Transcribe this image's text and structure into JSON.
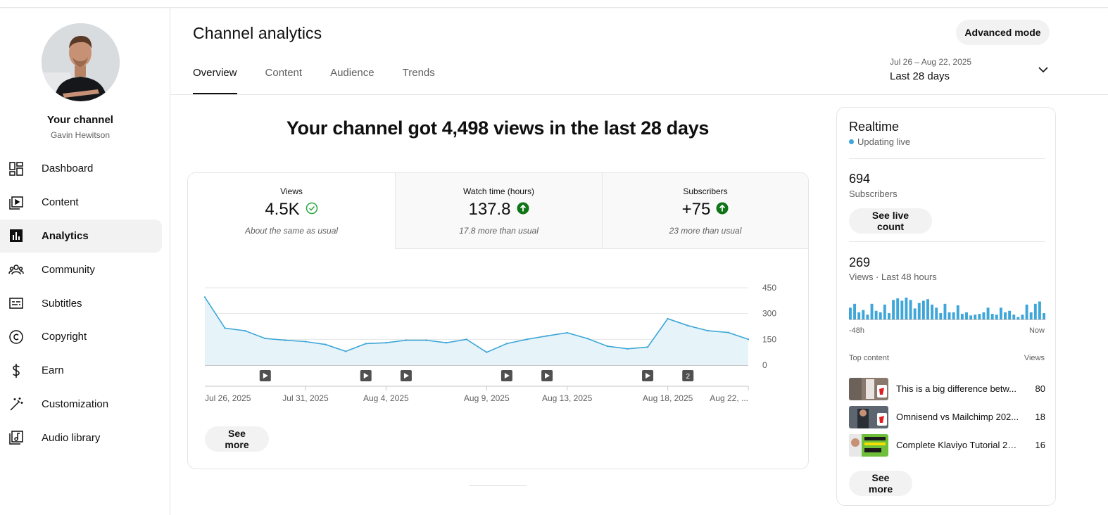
{
  "sidebar": {
    "channel_name": "Your channel",
    "channel_owner": "Gavin Hewitson",
    "items": [
      {
        "label": "Dashboard",
        "icon": "dashboard-icon",
        "active": false
      },
      {
        "label": "Content",
        "icon": "content-icon",
        "active": false
      },
      {
        "label": "Analytics",
        "icon": "analytics-icon",
        "active": true
      },
      {
        "label": "Community",
        "icon": "community-icon",
        "active": false
      },
      {
        "label": "Subtitles",
        "icon": "subtitles-icon",
        "active": false
      },
      {
        "label": "Copyright",
        "icon": "copyright-icon",
        "active": false
      },
      {
        "label": "Earn",
        "icon": "earn-icon",
        "active": false
      },
      {
        "label": "Customization",
        "icon": "customization-icon",
        "active": false
      },
      {
        "label": "Audio library",
        "icon": "audio-library-icon",
        "active": false
      }
    ]
  },
  "header": {
    "title": "Channel analytics",
    "advanced_mode": "Advanced mode",
    "tabs": [
      {
        "label": "Overview",
        "active": true
      },
      {
        "label": "Content",
        "active": false
      },
      {
        "label": "Audience",
        "active": false
      },
      {
        "label": "Trends",
        "active": false
      }
    ],
    "date_range": {
      "dates": "Jul 26 – Aug 22, 2025",
      "label": "Last 28 days"
    }
  },
  "main": {
    "headline": "Your channel got 4,498 views in the last 28 days",
    "metrics": [
      {
        "label": "Views",
        "value": "4.5K",
        "note": "About the same as usual",
        "status": "check"
      },
      {
        "label": "Watch time (hours)",
        "value": "137.8",
        "note": "17.8 more than usual",
        "status": "up"
      },
      {
        "label": "Subscribers",
        "value": "+75",
        "note": "23 more than usual",
        "status": "up"
      }
    ],
    "see_more": "See more"
  },
  "chart_data": {
    "type": "area",
    "series": [
      {
        "values": [
          395,
          215,
          200,
          155,
          145,
          137,
          120,
          80,
          125,
          130,
          145,
          145,
          130,
          150,
          75,
          125,
          150,
          170,
          188,
          155,
          110,
          95,
          105,
          270,
          230,
          200,
          190,
          150
        ]
      }
    ],
    "ylim": [
      0,
      450
    ],
    "yticks": [
      "450",
      "300",
      "150",
      "0"
    ],
    "xtick_labels": [
      {
        "index": 0,
        "label": "Jul 26, 2025"
      },
      {
        "index": 5,
        "label": "Jul 31, 2025"
      },
      {
        "index": 9,
        "label": "Aug 4, 2025"
      },
      {
        "index": 14,
        "label": "Aug 9, 2025"
      },
      {
        "index": 18,
        "label": "Aug 13, 2025"
      },
      {
        "index": 23,
        "label": "Aug 18, 2025"
      },
      {
        "index": 27,
        "label": "Aug 22, ..."
      }
    ],
    "upload_markers": [
      {
        "index": 3,
        "label": ""
      },
      {
        "index": 8,
        "label": ""
      },
      {
        "index": 10,
        "label": ""
      },
      {
        "index": 15,
        "label": ""
      },
      {
        "index": 17,
        "label": ""
      },
      {
        "index": 22,
        "label": ""
      },
      {
        "index": 24,
        "label": "2"
      }
    ],
    "colors": {
      "line": "#3ea6d8",
      "fill": "#e6f4fa",
      "marker": "#606060"
    },
    "grid": true
  },
  "realtime": {
    "title": "Realtime",
    "status": "Updating live",
    "subscribers_value": "694",
    "subscribers_label": "Subscribers",
    "see_live_count": "See live count",
    "views_value": "269",
    "views_label": "Views · Last 48 hours",
    "bars": [
      16,
      21,
      10,
      13,
      7,
      21,
      12,
      10,
      20,
      9,
      26,
      28,
      25,
      29,
      26,
      15,
      22,
      25,
      27,
      20,
      16,
      9,
      21,
      10,
      10,
      19,
      8,
      10,
      6,
      7,
      8,
      10,
      16,
      8,
      7,
      16,
      10,
      12,
      7,
      4,
      7,
      20,
      10,
      21,
      24,
      9
    ],
    "axis_start": "-48h",
    "axis_end": "Now",
    "top_content_label": "Top content",
    "top_views_label": "Views",
    "top_content": [
      {
        "title": "This is a big difference betw...",
        "views": "80"
      },
      {
        "title": "Omnisend vs Mailchimp 202...",
        "views": "18"
      },
      {
        "title": "Complete Klaviyo Tutorial 20...",
        "views": "16"
      }
    ],
    "see_more": "See more"
  }
}
